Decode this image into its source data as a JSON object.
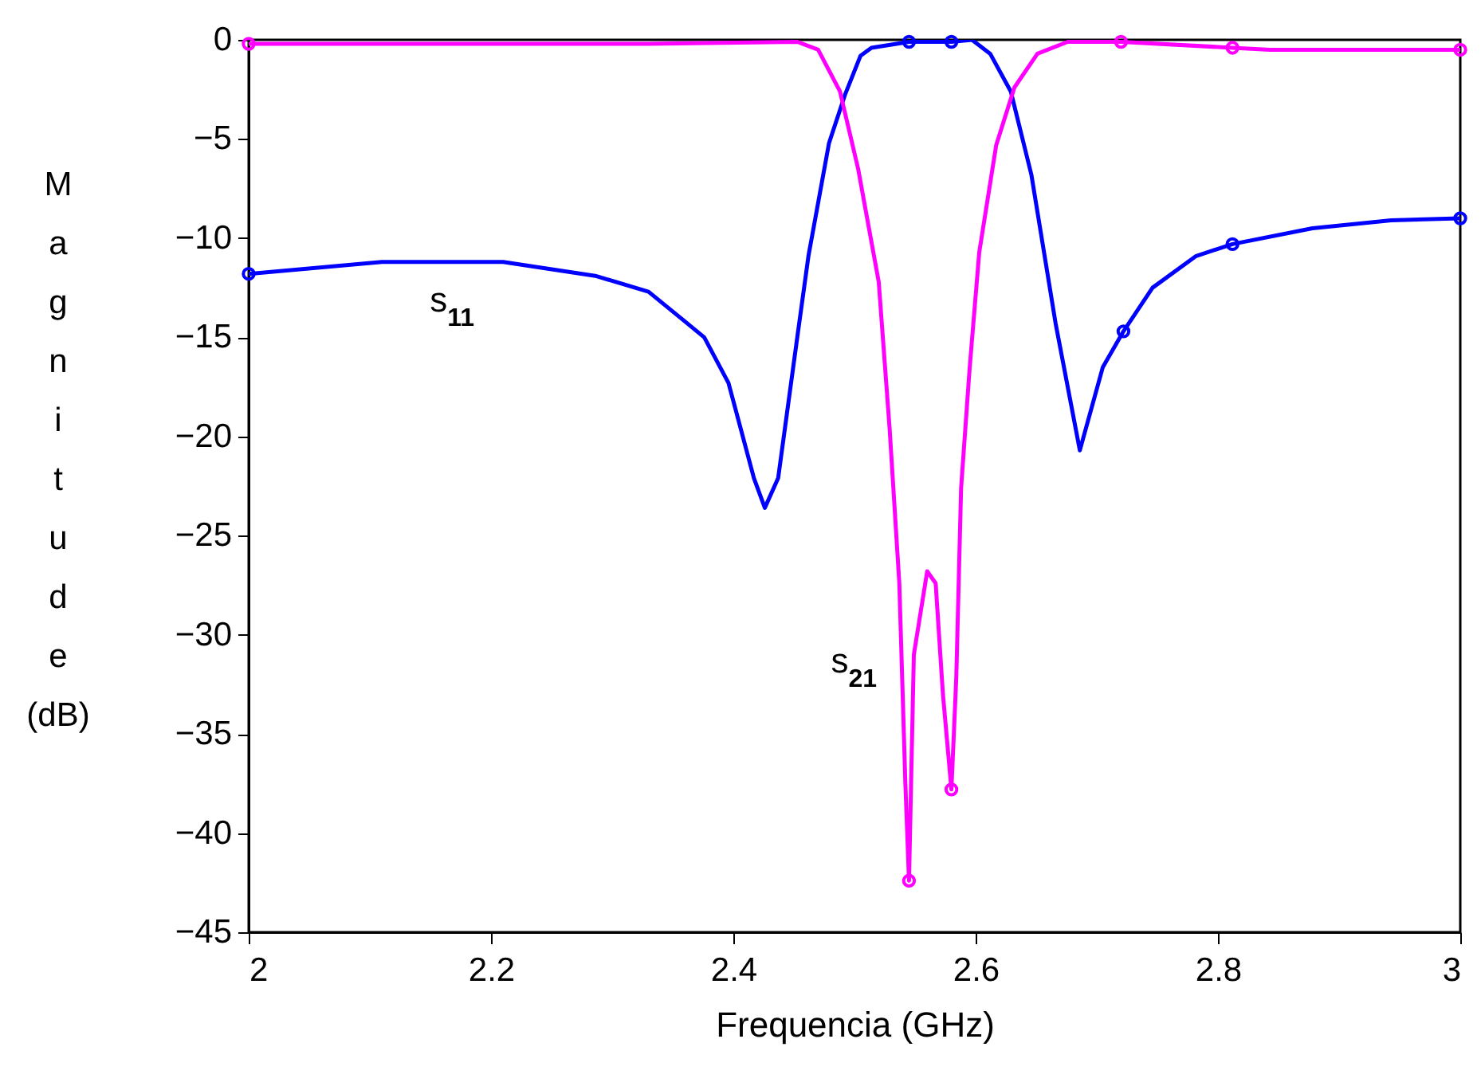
{
  "chart_data": {
    "type": "line",
    "xlabel": "Frequencia (GHz)",
    "ylabel": "Magnitude (dB)",
    "xlim": [
      2,
      3
    ],
    "xticks": [
      2,
      2.2,
      2.4,
      2.6,
      2.8,
      3
    ],
    "ylim": [
      -45,
      0
    ],
    "yticks": [
      -45,
      -40,
      -35,
      -30,
      -25,
      -20,
      -15,
      -10,
      -5,
      0
    ],
    "grid": false,
    "series": [
      {
        "name": "s$_{11}$",
        "color": "#0000ff",
        "x": [
          2,
          2.11,
          2.21,
          2.286,
          2.33,
          2.36,
          2.376,
          2.396,
          2.417,
          2.426,
          2.437,
          2.453,
          2.462,
          2.479,
          2.492,
          2.505,
          2.514,
          2.545,
          2.58,
          2.597,
          2.612,
          2.629,
          2.646,
          2.666,
          2.686,
          2.705,
          2.722,
          2.746,
          2.782,
          2.812,
          2.878,
          2.943,
          3
        ],
        "values": [
          -11.8,
          -11.2,
          -11.2,
          -11.9,
          -12.7,
          -14.2,
          -15,
          -17.3,
          -22.1,
          -23.6,
          -22.1,
          -14.9,
          -10.9,
          -5.2,
          -2.8,
          -0.8,
          -0.4,
          -0.1,
          -0.1,
          0,
          -0.7,
          -2.6,
          -6.8,
          -14.3,
          -20.7,
          -16.5,
          -14.7,
          -12.5,
          -10.9,
          -10.3,
          -9.5,
          -9.1,
          -9
        ]
      },
      {
        "name": "s$_{21}$",
        "color": "#ff00ff",
        "x": [
          2,
          2.33,
          2.453,
          2.47,
          2.488,
          2.503,
          2.52,
          2.529,
          2.537,
          2.542,
          2.545,
          2.549,
          2.56,
          2.567,
          2.573,
          2.58,
          2.584,
          2.588,
          2.595,
          2.603,
          2.617,
          2.632,
          2.651,
          2.676,
          2.72,
          2.812,
          2.843,
          3
        ],
        "values": [
          -0.2,
          -0.2,
          -0.1,
          -0.5,
          -2.6,
          -6.5,
          -12.2,
          -19.6,
          -27.4,
          -37.5,
          -42.4,
          -31,
          -26.8,
          -27.4,
          -33,
          -37.8,
          -32.2,
          -22.6,
          -16.6,
          -10.7,
          -5.3,
          -2.4,
          -0.7,
          -0.1,
          -0.1,
          -0.4,
          -0.5,
          -0.5
        ]
      },
      {
        "type": "scatter",
        "color": "#0000ff",
        "x": [
          2,
          2.545,
          2.58,
          2.722,
          2.812,
          3
        ],
        "values": [
          -11.8,
          -0.1,
          -0.1,
          -14.7,
          -10.3,
          -9
        ]
      },
      {
        "type": "scatter",
        "color": "#ff00ff",
        "x": [
          2,
          2.545,
          2.58,
          2.72,
          2.812,
          3
        ],
        "values": [
          -0.2,
          -42.4,
          -37.8,
          -0.1,
          -0.4,
          -0.5
        ]
      }
    ]
  }
}
